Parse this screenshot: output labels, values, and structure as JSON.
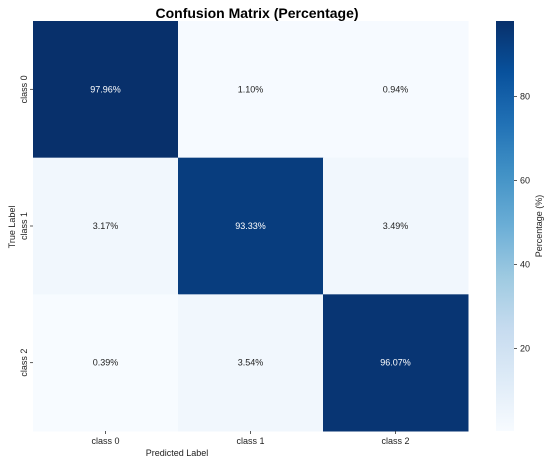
{
  "chart_data": {
    "type": "heatmap",
    "title": "Confusion Matrix (Percentage)",
    "xlabel": "Predicted Label",
    "ylabel": "True Label",
    "x_categories": [
      "class 0",
      "class 1",
      "class 2"
    ],
    "y_categories": [
      "class 0",
      "class 1",
      "class 2"
    ],
    "values": [
      [
        97.96,
        1.1,
        0.94
      ],
      [
        3.17,
        93.33,
        3.49
      ],
      [
        0.39,
        3.54,
        96.07
      ]
    ],
    "cell_labels": [
      [
        "97.96%",
        "1.10%",
        "0.94%"
      ],
      [
        "3.17%",
        "93.33%",
        "3.49%"
      ],
      [
        "0.39%",
        "3.54%",
        "96.07%"
      ]
    ],
    "colorbar": {
      "label": "Percentage (%)",
      "vmin": 0.39,
      "vmax": 97.96,
      "ticks": [
        20,
        40,
        60,
        80
      ],
      "tick_labels": [
        "20",
        "40",
        "60",
        "80"
      ],
      "colormap": "Blues"
    },
    "grid": false,
    "legend": "colorbar-right"
  }
}
